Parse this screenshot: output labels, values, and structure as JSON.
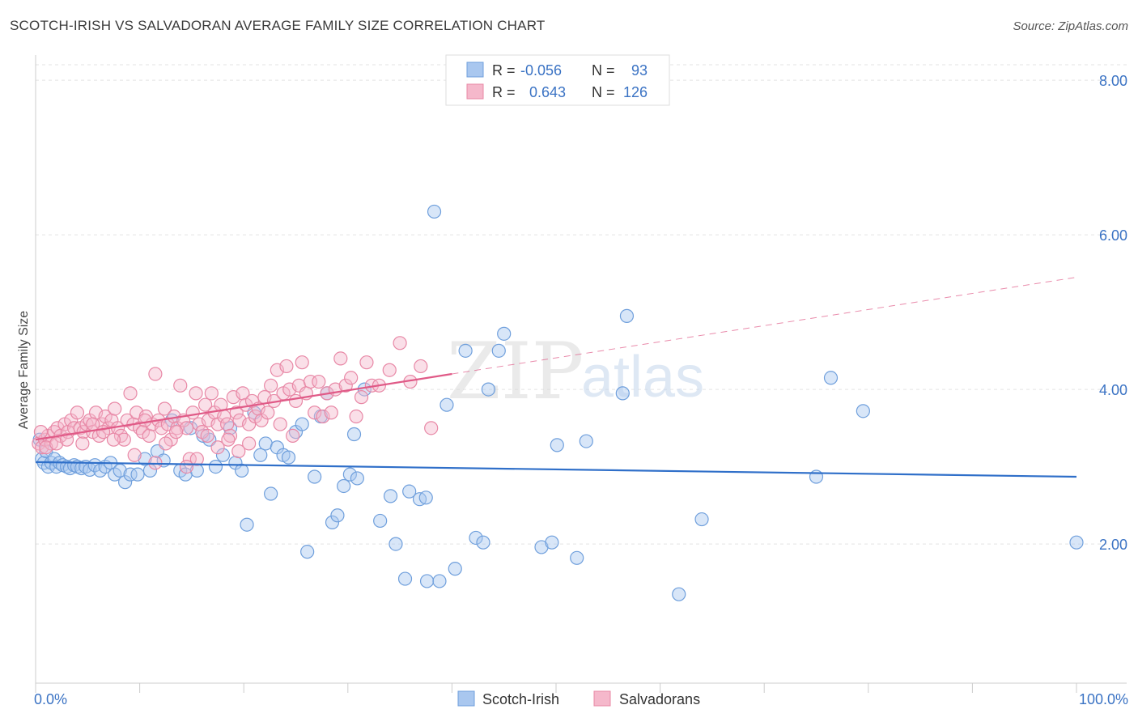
{
  "title": "SCOTCH-IRISH VS SALVADORAN AVERAGE FAMILY SIZE CORRELATION CHART",
  "source": "Source: ZipAtlas.com",
  "watermark": {
    "zip": "ZIP",
    "atlas": "atlas"
  },
  "legend_top": [
    {
      "r_label": "R =",
      "r_value": "-0.056",
      "n_label": "N =",
      "n_value": "93",
      "color": "#a9c7ef"
    },
    {
      "r_label": "R =",
      "r_value": "0.643",
      "n_label": "N =",
      "n_value": "126",
      "color": "#f5b8cb"
    }
  ],
  "legend_bottom": [
    {
      "label": "Scotch-Irish",
      "color": "#a9c7ef"
    },
    {
      "label": "Salvadorans",
      "color": "#f5b8cb"
    }
  ],
  "chart_data": {
    "type": "scatter",
    "ylabel": "Average Family Size",
    "x_tick_labels": [
      "0.0%",
      "100.0%"
    ],
    "y_tick_labels": [
      "2.00",
      "4.00",
      "6.00",
      "8.00"
    ],
    "xlim": [
      0,
      100
    ],
    "ylim": [
      0.2,
      8.2
    ],
    "y_ticks": [
      2,
      4,
      6,
      8
    ],
    "grid": true,
    "series": [
      {
        "name": "Scotch-Irish",
        "color": "#a9c7ef",
        "stroke": "#6f9fdc",
        "trend": {
          "x0": 0,
          "y0": 3.06,
          "x1": 100,
          "y1": 2.87,
          "color": "#2f6fc9"
        },
        "points": [
          [
            0.4,
            3.35
          ],
          [
            0.6,
            3.1
          ],
          [
            0.8,
            3.05
          ],
          [
            1.0,
            3.2
          ],
          [
            1.2,
            3.0
          ],
          [
            1.5,
            3.05
          ],
          [
            1.8,
            3.1
          ],
          [
            2.0,
            3.0
          ],
          [
            2.3,
            3.05
          ],
          [
            2.6,
            3.02
          ],
          [
            3.0,
            3.0
          ],
          [
            3.3,
            2.98
          ],
          [
            3.7,
            3.02
          ],
          [
            4.0,
            3.0
          ],
          [
            4.4,
            2.98
          ],
          [
            4.8,
            3.0
          ],
          [
            5.2,
            2.96
          ],
          [
            5.7,
            3.02
          ],
          [
            6.2,
            2.95
          ],
          [
            6.7,
            3.0
          ],
          [
            7.2,
            3.05
          ],
          [
            7.6,
            2.9
          ],
          [
            8.1,
            2.95
          ],
          [
            8.6,
            2.8
          ],
          [
            9.1,
            2.9
          ],
          [
            9.8,
            2.9
          ],
          [
            10.5,
            3.1
          ],
          [
            11.0,
            2.95
          ],
          [
            11.7,
            3.2
          ],
          [
            12.3,
            3.08
          ],
          [
            13.1,
            3.6
          ],
          [
            13.9,
            2.95
          ],
          [
            14.4,
            2.9
          ],
          [
            14.9,
            3.5
          ],
          [
            15.5,
            2.95
          ],
          [
            16.1,
            3.4
          ],
          [
            16.7,
            3.35
          ],
          [
            17.3,
            3.0
          ],
          [
            18.0,
            3.15
          ],
          [
            18.7,
            3.5
          ],
          [
            19.2,
            3.05
          ],
          [
            19.8,
            2.95
          ],
          [
            20.3,
            2.25
          ],
          [
            21.0,
            3.7
          ],
          [
            21.6,
            3.15
          ],
          [
            22.1,
            3.3
          ],
          [
            22.6,
            2.65
          ],
          [
            23.2,
            3.25
          ],
          [
            23.8,
            3.15
          ],
          [
            24.3,
            3.12
          ],
          [
            25.0,
            3.45
          ],
          [
            25.6,
            3.55
          ],
          [
            26.1,
            1.9
          ],
          [
            26.8,
            2.87
          ],
          [
            27.4,
            3.65
          ],
          [
            28.0,
            3.95
          ],
          [
            28.5,
            2.28
          ],
          [
            29.0,
            2.37
          ],
          [
            29.6,
            2.75
          ],
          [
            30.2,
            2.9
          ],
          [
            30.6,
            3.42
          ],
          [
            30.9,
            2.85
          ],
          [
            31.6,
            4.0
          ],
          [
            33.1,
            2.3
          ],
          [
            34.1,
            2.62
          ],
          [
            34.6,
            2.0
          ],
          [
            35.5,
            1.55
          ],
          [
            35.9,
            2.68
          ],
          [
            36.9,
            2.58
          ],
          [
            37.6,
            1.52
          ],
          [
            37.5,
            2.6
          ],
          [
            38.3,
            6.3
          ],
          [
            38.8,
            1.52
          ],
          [
            39.5,
            3.8
          ],
          [
            40.3,
            1.68
          ],
          [
            41.3,
            4.5
          ],
          [
            42.3,
            2.08
          ],
          [
            43.0,
            2.02
          ],
          [
            43.5,
            4.0
          ],
          [
            44.5,
            4.5
          ],
          [
            45.0,
            4.72
          ],
          [
            48.6,
            1.96
          ],
          [
            49.6,
            2.02
          ],
          [
            50.1,
            3.28
          ],
          [
            52.0,
            1.82
          ],
          [
            52.9,
            3.33
          ],
          [
            56.4,
            3.95
          ],
          [
            56.8,
            4.95
          ],
          [
            61.8,
            1.35
          ],
          [
            64.0,
            2.32
          ],
          [
            75.0,
            2.87
          ],
          [
            76.4,
            4.15
          ],
          [
            79.5,
            3.72
          ],
          [
            100.0,
            2.02
          ]
        ]
      },
      {
        "name": "Salvadorans",
        "color": "#f5b8cb",
        "stroke": "#e888a6",
        "trend": {
          "x0": 0,
          "y0": 3.35,
          "x1": 40,
          "y1": 4.2,
          "dash_x1": 100,
          "dash_y1": 5.45,
          "color": "#e05a87"
        },
        "points": [
          [
            0.3,
            3.3
          ],
          [
            0.6,
            3.25
          ],
          [
            0.9,
            3.35
          ],
          [
            1.2,
            3.4
          ],
          [
            1.5,
            3.3
          ],
          [
            1.8,
            3.45
          ],
          [
            2.1,
            3.5
          ],
          [
            2.4,
            3.4
          ],
          [
            2.8,
            3.55
          ],
          [
            3.1,
            3.45
          ],
          [
            3.4,
            3.6
          ],
          [
            3.7,
            3.5
          ],
          [
            4.0,
            3.7
          ],
          [
            4.3,
            3.5
          ],
          [
            4.6,
            3.45
          ],
          [
            4.9,
            3.55
          ],
          [
            5.2,
            3.6
          ],
          [
            5.5,
            3.45
          ],
          [
            5.8,
            3.7
          ],
          [
            6.1,
            3.4
          ],
          [
            6.4,
            3.55
          ],
          [
            6.7,
            3.65
          ],
          [
            7.0,
            3.5
          ],
          [
            7.3,
            3.6
          ],
          [
            7.6,
            3.75
          ],
          [
            7.9,
            3.5
          ],
          [
            8.2,
            3.4
          ],
          [
            8.5,
            3.35
          ],
          [
            8.8,
            3.6
          ],
          [
            9.1,
            3.95
          ],
          [
            9.4,
            3.55
          ],
          [
            9.7,
            3.7
          ],
          [
            10.0,
            3.5
          ],
          [
            10.3,
            3.45
          ],
          [
            10.6,
            3.65
          ],
          [
            10.9,
            3.4
          ],
          [
            11.2,
            3.55
          ],
          [
            11.5,
            4.2
          ],
          [
            11.8,
            3.6
          ],
          [
            12.1,
            3.5
          ],
          [
            12.4,
            3.75
          ],
          [
            12.7,
            3.55
          ],
          [
            13.0,
            3.35
          ],
          [
            13.3,
            3.65
          ],
          [
            13.6,
            3.5
          ],
          [
            13.9,
            4.05
          ],
          [
            14.2,
            3.6
          ],
          [
            14.5,
            3.5
          ],
          [
            14.8,
            3.1
          ],
          [
            15.1,
            3.7
          ],
          [
            15.4,
            3.95
          ],
          [
            15.7,
            3.55
          ],
          [
            16.0,
            3.45
          ],
          [
            16.3,
            3.8
          ],
          [
            16.6,
            3.6
          ],
          [
            16.9,
            3.95
          ],
          [
            17.2,
            3.7
          ],
          [
            17.5,
            3.55
          ],
          [
            17.8,
            3.8
          ],
          [
            18.1,
            3.65
          ],
          [
            18.4,
            3.55
          ],
          [
            18.7,
            3.4
          ],
          [
            19.0,
            3.9
          ],
          [
            19.3,
            3.7
          ],
          [
            19.6,
            3.6
          ],
          [
            19.9,
            3.95
          ],
          [
            20.2,
            3.8
          ],
          [
            20.5,
            3.55
          ],
          [
            20.8,
            3.85
          ],
          [
            21.1,
            3.65
          ],
          [
            21.4,
            3.75
          ],
          [
            21.7,
            3.6
          ],
          [
            22.0,
            3.9
          ],
          [
            22.3,
            3.7
          ],
          [
            22.6,
            4.05
          ],
          [
            22.9,
            3.85
          ],
          [
            23.2,
            4.25
          ],
          [
            23.5,
            3.55
          ],
          [
            23.8,
            3.95
          ],
          [
            24.1,
            4.3
          ],
          [
            24.4,
            4.0
          ],
          [
            24.7,
            3.4
          ],
          [
            25.0,
            3.85
          ],
          [
            25.3,
            4.05
          ],
          [
            25.6,
            4.35
          ],
          [
            26.0,
            3.95
          ],
          [
            26.4,
            4.1
          ],
          [
            26.8,
            3.7
          ],
          [
            27.2,
            4.1
          ],
          [
            27.6,
            3.65
          ],
          [
            28.0,
            3.95
          ],
          [
            28.4,
            3.7
          ],
          [
            28.8,
            4.0
          ],
          [
            29.3,
            4.4
          ],
          [
            29.8,
            4.05
          ],
          [
            30.3,
            4.15
          ],
          [
            30.8,
            3.65
          ],
          [
            31.3,
            3.9
          ],
          [
            31.8,
            4.35
          ],
          [
            32.3,
            4.05
          ],
          [
            33.0,
            4.05
          ],
          [
            34.0,
            4.25
          ],
          [
            35.0,
            4.6
          ],
          [
            36.0,
            4.1
          ],
          [
            37.0,
            4.3
          ],
          [
            38.0,
            3.5
          ],
          [
            0.5,
            3.45
          ],
          [
            1.0,
            3.25
          ],
          [
            2.0,
            3.3
          ],
          [
            3.0,
            3.35
          ],
          [
            4.5,
            3.3
          ],
          [
            5.5,
            3.55
          ],
          [
            6.5,
            3.45
          ],
          [
            7.5,
            3.35
          ],
          [
            9.5,
            3.15
          ],
          [
            10.5,
            3.6
          ],
          [
            11.5,
            3.05
          ],
          [
            12.5,
            3.3
          ],
          [
            13.5,
            3.45
          ],
          [
            14.5,
            3.0
          ],
          [
            15.5,
            3.1
          ],
          [
            16.5,
            3.4
          ],
          [
            17.5,
            3.25
          ],
          [
            18.5,
            3.35
          ],
          [
            19.5,
            3.2
          ],
          [
            20.5,
            3.3
          ]
        ]
      }
    ]
  }
}
